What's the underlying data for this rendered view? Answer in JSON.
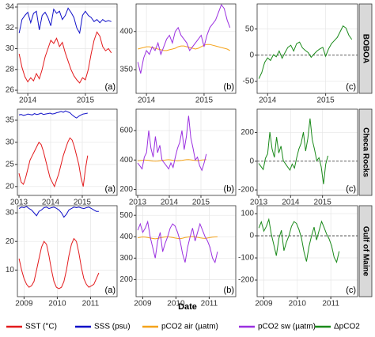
{
  "xlabel": "Date",
  "legend": [
    {
      "name": "SST (°C)",
      "color": "#e31a1c"
    },
    {
      "name": "SSS (psu)",
      "color": "#1010c8"
    },
    {
      "name": "pCO2 air (µatm)",
      "color": "#f5a31a"
    },
    {
      "name": "pCO2 sw (µatm)",
      "color": "#9b30e0"
    },
    {
      "name": "ΔpCO2",
      "color": "#1a8a1a"
    }
  ],
  "chart_data": [
    {
      "type": "line",
      "facet": "BOBOA",
      "x": [
        2013.85,
        2013.9,
        2013.95,
        2014.0,
        2014.05,
        2014.1,
        2014.15,
        2014.2,
        2014.25,
        2014.3,
        2014.35,
        2014.4,
        2014.45,
        2014.5,
        2014.55,
        2014.6,
        2014.65,
        2014.7,
        2014.75,
        2014.8,
        2014.85,
        2014.9,
        2014.95,
        2015.0,
        2015.05,
        2015.1,
        2015.15,
        2015.2,
        2015.25,
        2015.3,
        2015.35,
        2015.4,
        2015.45
      ],
      "xlim": [
        2013.82,
        2015.55
      ],
      "xticks": [
        2014,
        2015
      ],
      "panels": [
        {
          "label": "(a)",
          "ylim": [
            25.7,
            34.3
          ],
          "yticks": [
            26,
            28,
            30,
            32,
            34
          ],
          "series": [
            {
              "color": "#e31a1c",
              "values": [
                29.5,
                28.2,
                27.3,
                26.8,
                27.2,
                26.9,
                27.6,
                27.1,
                28.0,
                29.2,
                30.0,
                30.8,
                30.5,
                31.0,
                30.2,
                30.6,
                29.6,
                28.8,
                28.0,
                27.4,
                27.0,
                26.7,
                27.2,
                27.0,
                28.0,
                29.5,
                30.8,
                31.6,
                31.2,
                30.2,
                29.8,
                30.0,
                29.6
              ]
            },
            {
              "color": "#1010c8",
              "values": [
                31.5,
                32.8,
                33.2,
                33.5,
                32.5,
                33.4,
                33.6,
                31.8,
                33.2,
                33.5,
                33.0,
                32.2,
                33.8,
                33.4,
                33.6,
                32.8,
                33.2,
                33.9,
                33.5,
                33.0,
                32.0,
                31.5,
                33.2,
                33.6,
                33.2,
                33.0,
                32.6,
                32.8,
                32.5,
                32.8,
                32.6,
                32.7,
                32.6
              ]
            }
          ]
        },
        {
          "label": "(b)",
          "ylim": [
            319,
            436
          ],
          "yticks": [
            350,
            400
          ],
          "series": [
            {
              "color": "#f5a31a",
              "values": [
                377,
                378,
                379,
                380,
                380,
                379,
                378,
                377,
                376,
                375,
                375,
                376,
                377,
                378,
                380,
                381,
                381,
                380,
                379,
                378,
                377,
                378,
                380,
                382,
                383,
                383,
                382,
                381,
                380,
                379,
                378,
                377,
                375
              ]
            },
            {
              "color": "#9b30e0",
              "values": [
                360,
                345,
                365,
                375,
                370,
                380,
                375,
                385,
                370,
                380,
                390,
                395,
                385,
                400,
                405,
                395,
                390,
                385,
                375,
                380,
                385,
                390,
                395,
                380,
                395,
                405,
                410,
                415,
                425,
                435,
                430,
                415,
                405
              ]
            }
          ]
        },
        {
          "label": "(c)",
          "ylim": [
            -73,
            98
          ],
          "yticks": [
            -50,
            0,
            50
          ],
          "refline": 0,
          "series": [
            {
              "color": "#1a8a1a",
              "values": [
                -45,
                -33,
                -14,
                -5,
                -10,
                1,
                -3,
                8,
                -6,
                5,
                15,
                19,
                8,
                22,
                25,
                14,
                9,
                5,
                -4,
                2,
                8,
                12,
                15,
                -2,
                12,
                22,
                28,
                34,
                45,
                56,
                52,
                38,
                30
              ]
            }
          ]
        }
      ]
    },
    {
      "type": "line",
      "facet": "Checa Rocks",
      "x": [
        2013.0,
        2013.07,
        2013.14,
        2013.21,
        2013.28,
        2013.35,
        2013.42,
        2013.49,
        2013.56,
        2013.63,
        2013.7,
        2013.77,
        2013.84,
        2013.91,
        2013.98,
        2014.05,
        2014.12,
        2014.19,
        2014.26,
        2014.33,
        2014.4,
        2014.47,
        2014.54,
        2014.61,
        2014.68,
        2014.75,
        2014.82,
        2014.89,
        2014.96,
        2015.03,
        2015.1,
        2015.17
      ],
      "xlim": [
        2012.95,
        2016.1
      ],
      "xticks": [
        2013,
        2014,
        2015
      ],
      "panels": [
        {
          "label": "(a)",
          "ylim": [
            18,
            37.5
          ],
          "yticks": [
            20,
            25,
            30,
            35
          ],
          "series": [
            {
              "color": "#e31a1c",
              "values": [
                23,
                21,
                20.5,
                22,
                24,
                26,
                27,
                28,
                29,
                30,
                29.5,
                28,
                26,
                24,
                22,
                21,
                20,
                21.5,
                23,
                25,
                27,
                28.5,
                30,
                31,
                30.5,
                29,
                27,
                25,
                22,
                20,
                24,
                27
              ]
            },
            {
              "color": "#1010c8",
              "values": [
                36.2,
                36.3,
                36.1,
                36.2,
                36.4,
                36.3,
                36.2,
                36.5,
                36.3,
                36.4,
                36.6,
                36.3,
                36.4,
                36.5,
                36.6,
                36.4,
                36.5,
                36.7,
                36.8,
                37.0,
                36.8,
                37.1,
                36.9,
                36.7,
                36.2,
                35.8,
                35.5,
                35.9,
                36.2,
                36.4,
                36.5,
                36.6
              ]
            }
          ]
        },
        {
          "label": "(b)",
          "ylim": [
            160,
            745
          ],
          "yticks": [
            200,
            400,
            600
          ],
          "series": [
            {
              "color": "#f5a31a",
              "values": [
                395,
                396,
                398,
                400,
                399,
                397,
                395,
                393,
                392,
                393,
                395,
                397,
                399,
                401,
                402,
                400,
                398,
                396,
                395,
                396,
                398,
                400,
                402,
                403,
                401,
                399,
                397,
                396,
                398,
                400,
                401,
                402
              ]
            },
            {
              "color": "#9b30e0",
              "values": [
                380,
                360,
                340,
                420,
                450,
                600,
                480,
                420,
                560,
                450,
                500,
                400,
                380,
                360,
                340,
                380,
                350,
                420,
                480,
                520,
                600,
                470,
                560,
                700,
                550,
                480,
                400,
                420,
                360,
                330,
                380,
                440
              ]
            }
          ]
        },
        {
          "label": "(c)",
          "ylim": [
            -238,
            362
          ],
          "yticks": [
            -200,
            0,
            200
          ],
          "refline": 0,
          "series": [
            {
              "color": "#1a8a1a",
              "values": [
                -15,
                -36,
                -58,
                20,
                51,
                203,
                85,
                27,
                168,
                57,
                105,
                3,
                -19,
                -41,
                -62,
                -20,
                -48,
                24,
                85,
                124,
                202,
                70,
                158,
                297,
                149,
                81,
                3,
                24,
                -38,
                -160,
                -21,
                38
              ]
            }
          ]
        }
      ]
    },
    {
      "type": "line",
      "facet": "Gulf of Maine",
      "x": [
        2008.85,
        2008.925,
        2009.0,
        2009.075,
        2009.15,
        2009.225,
        2009.3,
        2009.375,
        2009.45,
        2009.525,
        2009.6,
        2009.675,
        2009.75,
        2009.825,
        2009.9,
        2009.975,
        2010.05,
        2010.125,
        2010.2,
        2010.275,
        2010.35,
        2010.425,
        2010.5,
        2010.575,
        2010.65,
        2010.725,
        2010.8,
        2010.875,
        2010.95,
        2011.025,
        2011.1,
        2011.175,
        2011.25
      ],
      "xlim": [
        2008.8,
        2011.8
      ],
      "xticks": [
        2009,
        2010,
        2011
      ],
      "panels": [
        {
          "label": "(a)",
          "ylim": [
            0.7,
            32.5
          ],
          "yticks": [
            10,
            20,
            30
          ],
          "series": [
            {
              "color": "#e31a1c",
              "values": [
                14,
                10,
                7,
                5,
                4,
                4.5,
                6,
                10,
                14,
                18,
                20,
                19,
                15,
                10,
                6,
                4,
                3.5,
                4,
                6,
                10,
                15,
                19,
                21,
                20,
                16,
                11,
                7,
                5,
                4,
                4.5,
                5,
                7,
                9
              ]
            },
            {
              "color": "#1010c8",
              "values": [
                31.5,
                32,
                31.8,
                32.2,
                31.5,
                31,
                30,
                29,
                30.5,
                31,
                31.8,
                32,
                31.5,
                31.8,
                32,
                31.6,
                31,
                30,
                28.5,
                29.5,
                31,
                31.5,
                32,
                31.8,
                32,
                31.7,
                31.5,
                31.8,
                32,
                31.5,
                31,
                30.5,
                30.5
              ]
            }
          ]
        },
        {
          "label": "(b)",
          "ylim": [
            120,
            545
          ],
          "yticks": [
            200,
            300,
            400,
            500
          ],
          "series": [
            {
              "color": "#f5a31a",
              "values": [
                395,
                397,
                399,
                398,
                396,
                394,
                392,
                390,
                392,
                395,
                397,
                399,
                400,
                398,
                396,
                394,
                392,
                391,
                393,
                396,
                398,
                400,
                401,
                399,
                397,
                395,
                393,
                392,
                394,
                396,
                398,
                399,
                400
              ]
            },
            {
              "color": "#9b30e0",
              "values": [
                430,
                460,
                420,
                440,
                470,
                400,
                350,
                300,
                380,
                420,
                330,
                370,
                400,
                440,
                460,
                450,
                420,
                380,
                320,
                280,
                350,
                400,
                440,
                380,
                420,
                460,
                430,
                400,
                380,
                350,
                300,
                280,
                330
              ]
            }
          ]
        },
        {
          "label": "(c)",
          "ylim": [
            -275,
            136
          ],
          "yticks": [
            -200,
            -100,
            0,
            100
          ],
          "refline": 0,
          "series": [
            {
              "color": "#1a8a1a",
              "values": [
                35,
                63,
                21,
                42,
                74,
                6,
                -42,
                -90,
                -12,
                25,
                -67,
                -29,
                0,
                42,
                64,
                56,
                28,
                -11,
                -73,
                -116,
                -48,
                0,
                39,
                -19,
                23,
                65,
                37,
                8,
                -14,
                -46,
                -98,
                -119,
                -70
              ]
            }
          ]
        }
      ]
    }
  ]
}
